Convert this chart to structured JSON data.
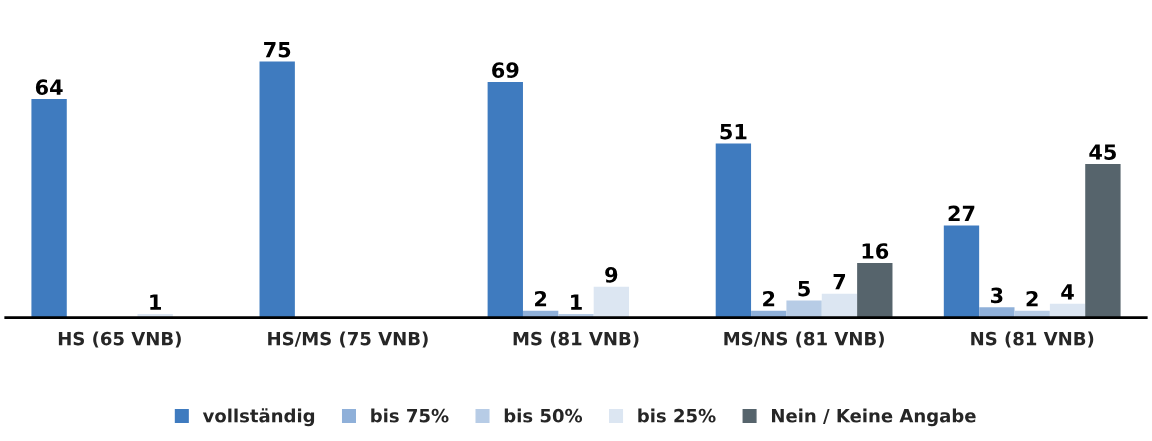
{
  "chart_data": {
    "type": "bar",
    "categories": [
      "HS (65 VNB)",
      "HS/MS (75 VNB)",
      "MS (81 VNB)",
      "MS/NS (81 VNB)",
      "NS (81 VNB)"
    ],
    "series": [
      {
        "name": "vollständig",
        "color": "#3f7bbf",
        "values": [
          64,
          75,
          69,
          51,
          27
        ]
      },
      {
        "name": "bis 75%",
        "color": "#8fb0d9",
        "values": [
          null,
          null,
          2,
          2,
          3
        ]
      },
      {
        "name": "bis 50%",
        "color": "#b7cce6",
        "values": [
          null,
          null,
          1,
          5,
          2
        ]
      },
      {
        "name": "bis 25%",
        "color": "#dce6f2",
        "values": [
          1,
          null,
          9,
          7,
          4
        ]
      },
      {
        "name": "Nein / Keine Angabe",
        "color": "#56646c",
        "values": [
          null,
          null,
          null,
          16,
          45
        ]
      }
    ],
    "data_labels": true,
    "legend": "bottom",
    "grid": false
  }
}
